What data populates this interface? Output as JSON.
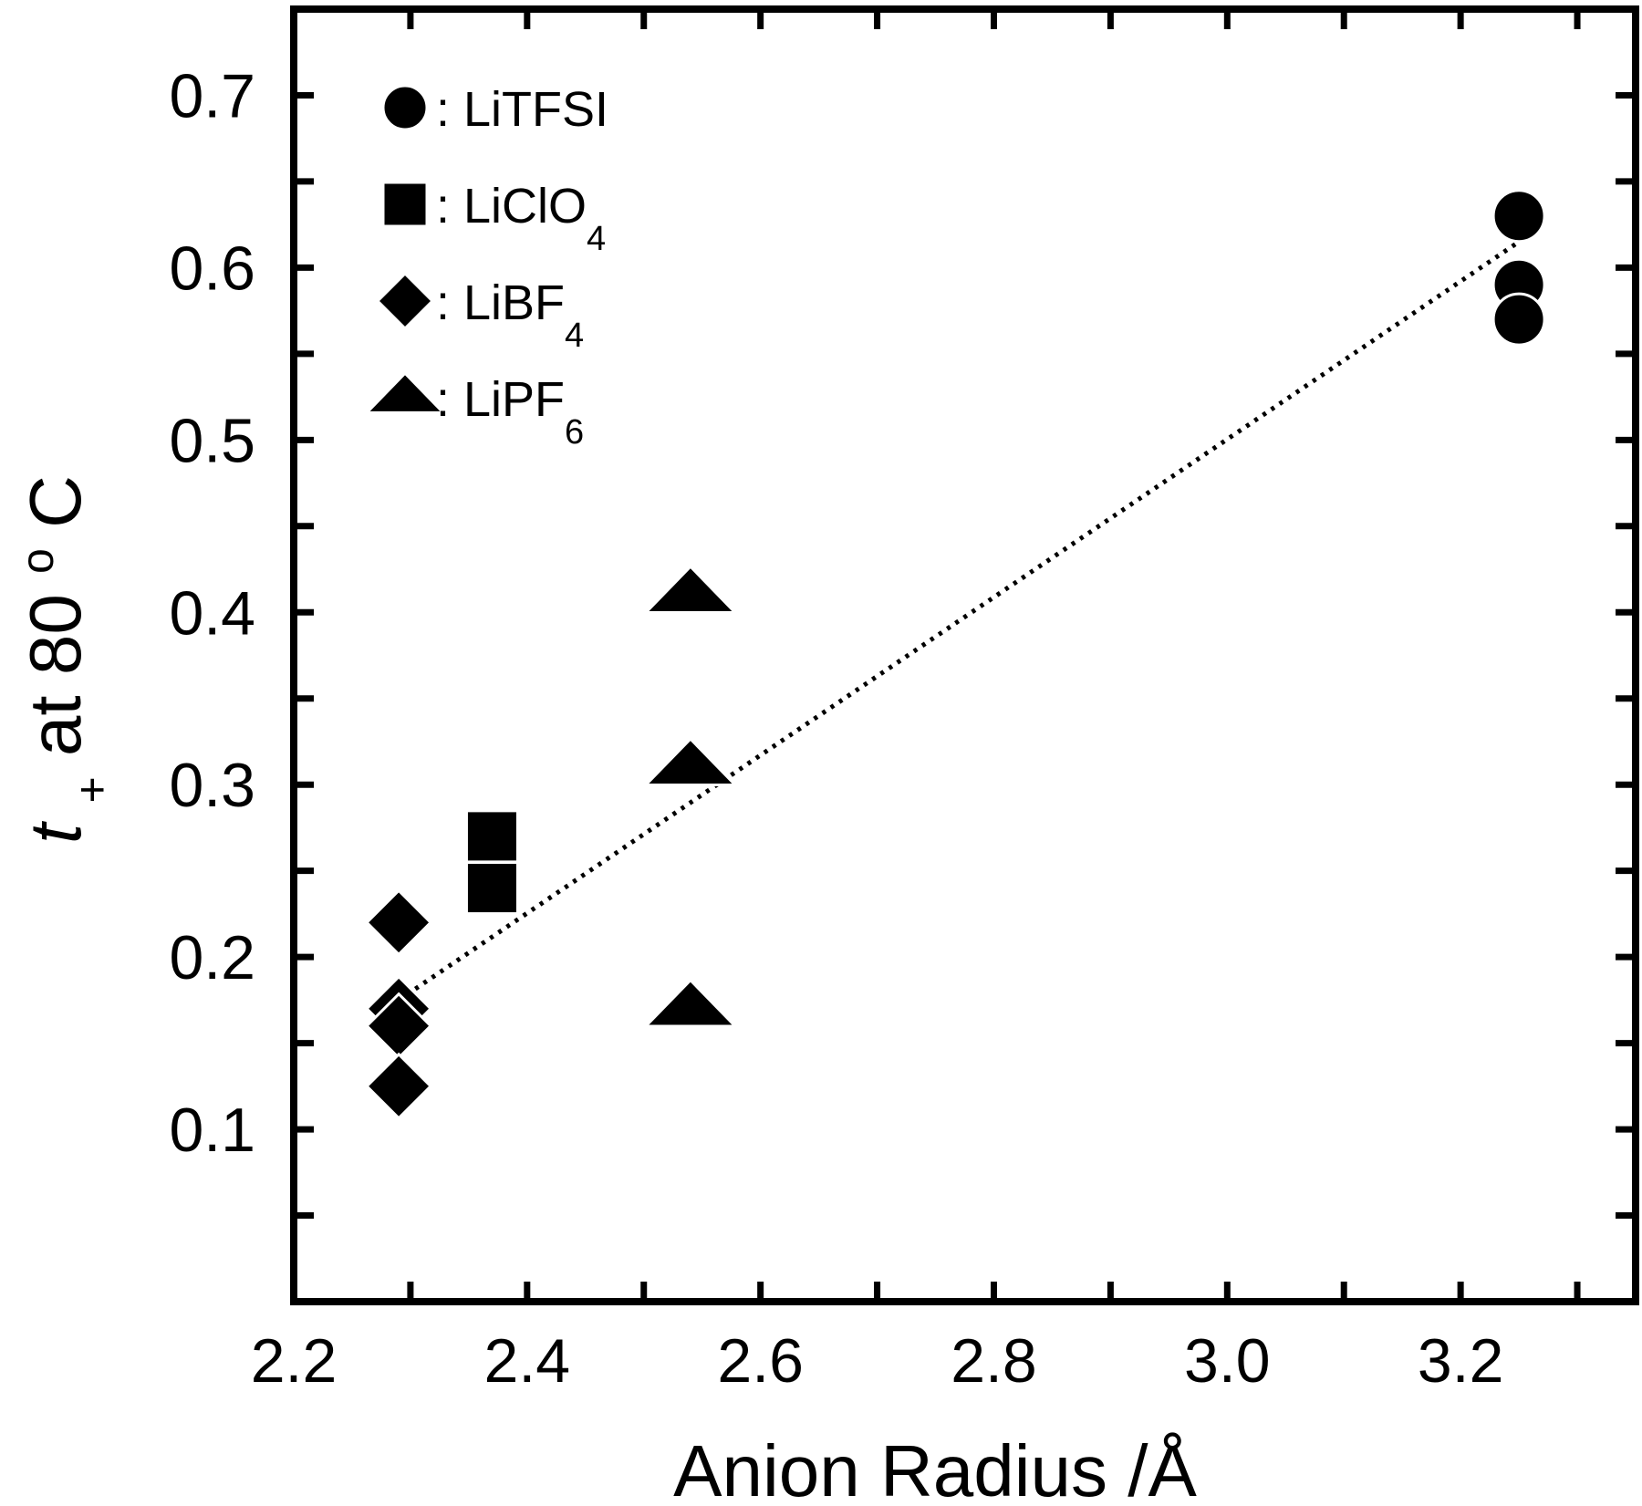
{
  "chart_data": {
    "type": "scatter",
    "xlabel": "Anion Radius /Å",
    "ylabel_parts": {
      "italic_t": "t",
      "subscript": "+",
      "rest": " at 80 ",
      "degree": "o",
      "unit": "C"
    },
    "xlim": [
      2.2,
      3.35
    ],
    "ylim": [
      0.0,
      0.75
    ],
    "x_ticks": [
      {
        "value": 2.2,
        "label": "2.2"
      },
      {
        "value": 2.4,
        "label": "2.4"
      },
      {
        "value": 2.6,
        "label": "2.6"
      },
      {
        "value": 2.8,
        "label": "2.8"
      },
      {
        "value": 3.0,
        "label": "3.0"
      },
      {
        "value": 3.2,
        "label": "3.2"
      }
    ],
    "y_ticks": [
      {
        "value": 0.1,
        "label": "0.1"
      },
      {
        "value": 0.2,
        "label": "0.2"
      },
      {
        "value": 0.3,
        "label": "0.3"
      },
      {
        "value": 0.4,
        "label": "0.4"
      },
      {
        "value": 0.5,
        "label": "0.5"
      },
      {
        "value": 0.6,
        "label": "0.6"
      },
      {
        "value": 0.7,
        "label": "0.7"
      }
    ],
    "series": [
      {
        "name": "LiTFSI",
        "legend_main": ": LiTFSI",
        "legend_sub": "",
        "marker": "circle",
        "points": [
          [
            3.25,
            0.63
          ],
          [
            3.25,
            0.59
          ],
          [
            3.25,
            0.57
          ]
        ]
      },
      {
        "name": "LiClO4",
        "legend_main": ": LiClO",
        "legend_sub": "4",
        "marker": "square",
        "points": [
          [
            2.37,
            0.27
          ],
          [
            2.37,
            0.24
          ]
        ]
      },
      {
        "name": "LiBF4",
        "legend_main": ": LiBF",
        "legend_sub": "4",
        "marker": "diamond",
        "points": [
          [
            2.29,
            0.22
          ],
          [
            2.29,
            0.17
          ],
          [
            2.29,
            0.16
          ],
          [
            2.29,
            0.125
          ]
        ]
      },
      {
        "name": "LiPF6",
        "legend_main": ": LiPF",
        "legend_sub": "6",
        "marker": "triangle",
        "points": [
          [
            2.54,
            0.41
          ],
          [
            2.54,
            0.31
          ],
          [
            2.54,
            0.17
          ]
        ]
      }
    ],
    "trendline": {
      "style": "dotted",
      "x": [
        2.29,
        3.25
      ],
      "y": [
        0.175,
        0.615
      ]
    },
    "legend_position": "top-left",
    "grid": false
  }
}
